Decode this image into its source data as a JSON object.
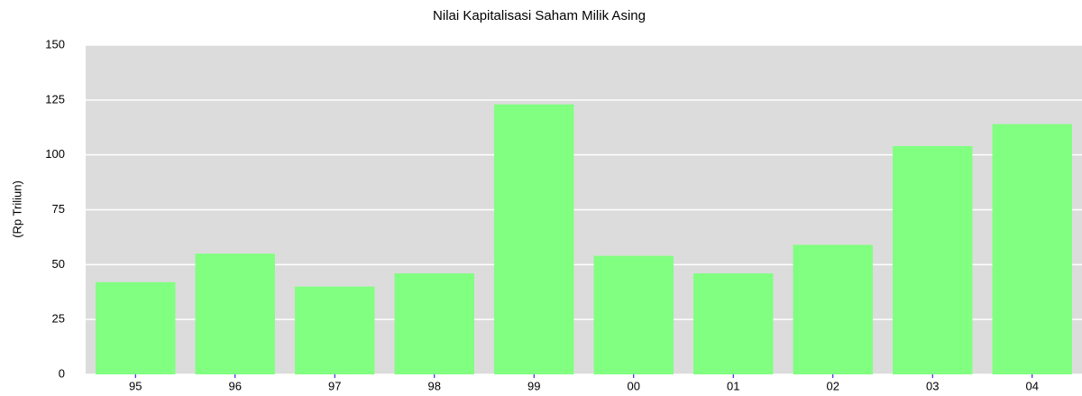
{
  "chart_data": {
    "type": "bar",
    "title": "Nilai Kapitalisasi Saham Milik Asing",
    "ylabel": "(Rp Triliun)",
    "categories": [
      "95",
      "96",
      "97",
      "98",
      "99",
      "00",
      "01",
      "02",
      "03",
      "04"
    ],
    "values": [
      42,
      55,
      40,
      46,
      123,
      54,
      46,
      59,
      104,
      114
    ],
    "color": "#80ff80",
    "ylim": [
      0,
      150
    ],
    "yticks": [
      0,
      25,
      50,
      75,
      100,
      125,
      150
    ],
    "grid": true
  }
}
